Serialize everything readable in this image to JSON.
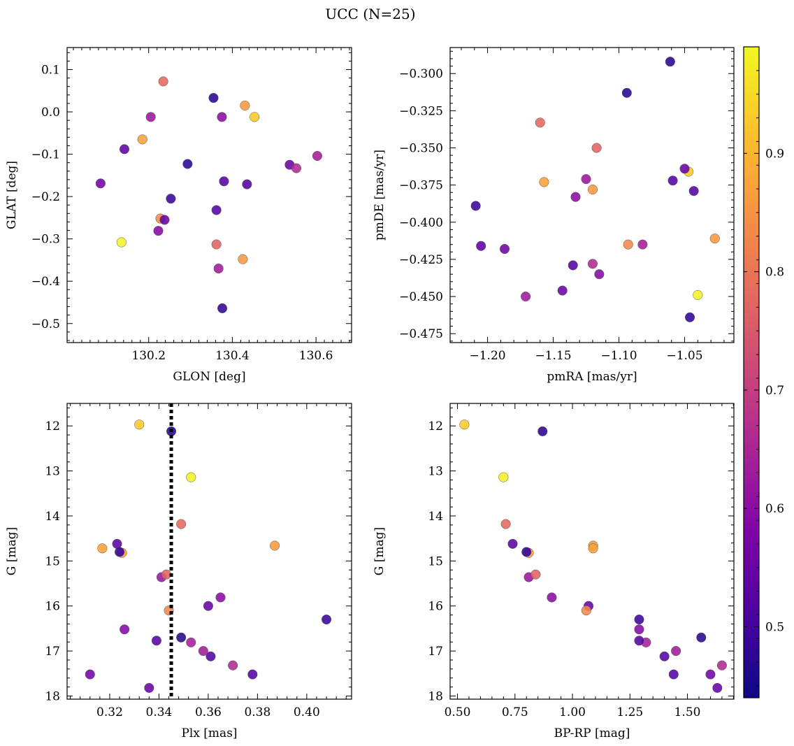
{
  "chart_data": {
    "type": "scatter",
    "title": "UCC (N=25)",
    "colorbar": {
      "colormap": "plasma",
      "range": [
        0.44,
        0.99
      ],
      "ticks": [
        "0.5",
        "0.6",
        "0.7",
        "0.8",
        "0.9"
      ]
    },
    "stars": [
      {
        "glon": 130.235,
        "glat": 0.072,
        "pmra": -1.16,
        "pmde": -0.333,
        "plx": 0.349,
        "g": 14.18,
        "bprp": 0.71,
        "c": 0.78
      },
      {
        "glon": 130.355,
        "glat": 0.033,
        "pmra": -1.061,
        "pmde": -0.292,
        "plx": 0.345,
        "g": 12.12,
        "bprp": 0.87,
        "c": 0.47
      },
      {
        "glon": 130.43,
        "glat": 0.015,
        "pmra": -1.12,
        "pmde": -0.378,
        "plx": 0.387,
        "g": 14.66,
        "bprp": 1.09,
        "c": 0.86
      },
      {
        "glon": 130.453,
        "glat": -0.012,
        "pmra": -1.047,
        "pmde": -0.366,
        "plx": 0.332,
        "g": 11.97,
        "bprp": 0.53,
        "c": 0.93
      },
      {
        "glon": 130.205,
        "glat": -0.012,
        "pmra": -1.125,
        "pmde": -0.371,
        "plx": 0.341,
        "g": 15.36,
        "bprp": 0.81,
        "c": 0.62
      },
      {
        "glon": 130.375,
        "glat": -0.012,
        "pmra": -1.133,
        "pmde": -0.383,
        "plx": 0.365,
        "g": 15.81,
        "bprp": 0.91,
        "c": 0.6
      },
      {
        "glon": 130.185,
        "glat": -0.065,
        "pmra": -1.157,
        "pmde": -0.373,
        "plx": 0.317,
        "g": 14.72,
        "bprp": 1.09,
        "c": 0.87
      },
      {
        "glon": 130.142,
        "glat": -0.088,
        "pmra": -1.205,
        "pmde": -0.416,
        "plx": 0.323,
        "g": 14.62,
        "bprp": 0.74,
        "c": 0.53
      },
      {
        "glon": 130.603,
        "glat": -0.104,
        "pmra": -1.082,
        "pmde": -0.415,
        "plx": 0.353,
        "g": 16.81,
        "bprp": 1.32,
        "c": 0.64
      },
      {
        "glon": 130.293,
        "glat": -0.123,
        "pmra": -1.094,
        "pmde": -0.313,
        "plx": 0.349,
        "g": 16.7,
        "bprp": 1.56,
        "c": 0.47
      },
      {
        "glon": 130.537,
        "glat": -0.125,
        "pmra": -1.05,
        "pmde": -0.364,
        "plx": 0.36,
        "g": 16.0,
        "bprp": 1.07,
        "c": 0.55
      },
      {
        "glon": 130.553,
        "glat": -0.133,
        "pmra": -1.12,
        "pmde": -0.428,
        "plx": 0.37,
        "g": 17.32,
        "bprp": 1.65,
        "c": 0.66
      },
      {
        "glon": 130.38,
        "glat": -0.164,
        "pmra": -1.059,
        "pmde": -0.372,
        "plx": 0.361,
        "g": 17.12,
        "bprp": 1.4,
        "c": 0.52
      },
      {
        "glon": 130.085,
        "glat": -0.169,
        "pmra": -1.187,
        "pmde": -0.418,
        "plx": 0.312,
        "g": 17.52,
        "bprp": 1.6,
        "c": 0.56
      },
      {
        "glon": 130.435,
        "glat": -0.171,
        "pmra": -1.043,
        "pmde": -0.379,
        "plx": 0.378,
        "g": 17.52,
        "bprp": 1.44,
        "c": 0.52
      },
      {
        "glon": 130.253,
        "glat": -0.205,
        "pmra": -1.209,
        "pmde": -0.389,
        "plx": 0.408,
        "g": 16.3,
        "bprp": 1.29,
        "c": 0.49
      },
      {
        "glon": 130.362,
        "glat": -0.232,
        "pmra": -1.135,
        "pmde": -0.429,
        "plx": 0.339,
        "g": 16.77,
        "bprp": 1.29,
        "c": 0.52
      },
      {
        "glon": 130.228,
        "glat": -0.252,
        "pmra": -1.093,
        "pmde": -0.415,
        "plx": 0.344,
        "g": 16.1,
        "bprp": 1.06,
        "c": 0.83
      },
      {
        "glon": 130.238,
        "glat": -0.255,
        "pmra": -1.143,
        "pmde": -0.446,
        "plx": 0.336,
        "g": 17.82,
        "bprp": 1.63,
        "c": 0.55
      },
      {
        "glon": 130.223,
        "glat": -0.281,
        "pmra": -1.115,
        "pmde": -0.435,
        "plx": 0.326,
        "g": 16.52,
        "bprp": 1.29,
        "c": 0.59
      },
      {
        "glon": 130.135,
        "glat": -0.308,
        "pmra": -1.04,
        "pmde": -0.449,
        "plx": 0.353,
        "g": 13.14,
        "bprp": 0.7,
        "c": 0.98
      },
      {
        "glon": 130.362,
        "glat": -0.313,
        "pmra": -1.117,
        "pmde": -0.35,
        "plx": 0.343,
        "g": 15.3,
        "bprp": 0.84,
        "c": 0.77
      },
      {
        "glon": 130.425,
        "glat": -0.348,
        "pmra": -1.027,
        "pmde": -0.411,
        "plx": 0.325,
        "g": 14.82,
        "bprp": 0.81,
        "c": 0.86
      },
      {
        "glon": 130.367,
        "glat": -0.37,
        "pmra": -1.171,
        "pmde": -0.45,
        "plx": 0.358,
        "g": 17.0,
        "bprp": 1.45,
        "c": 0.63
      },
      {
        "glon": 130.376,
        "glat": -0.464,
        "pmra": -1.046,
        "pmde": -0.464,
        "plx": 0.324,
        "g": 14.8,
        "bprp": 0.8,
        "c": 0.48
      }
    ],
    "panels": [
      {
        "id": "glon-glat",
        "xkey": "glon",
        "ykey": "glat",
        "xlabel": "GLON [deg]",
        "ylabel": "GLAT [deg]",
        "xlim": [
          130.005,
          130.685
        ],
        "ylim": [
          -0.545,
          0.152
        ],
        "y_inverted": false,
        "xticks": [
          130.2,
          130.4,
          130.6
        ],
        "xticklabels": [
          "130.2",
          "130.4",
          "130.6"
        ],
        "yticks": [
          0.1,
          0.0,
          -0.1,
          -0.2,
          -0.3,
          -0.4,
          -0.5
        ],
        "yticklabels": [
          "0.1",
          "0.0",
          "−0.1",
          "−0.2",
          "−0.3",
          "−0.4",
          "−0.5"
        ],
        "xminor": 0.02,
        "yminor": 0.02
      },
      {
        "id": "pmra-pmde",
        "xkey": "pmra",
        "ykey": "pmde",
        "xlabel": "pmRA [mas/yr]",
        "ylabel": "pmDE [mas/yr]",
        "xlim": [
          -1.2285,
          -1.0125
        ],
        "ylim": [
          -0.481,
          -0.2825
        ],
        "y_inverted": false,
        "xticks": [
          -1.2,
          -1.15,
          -1.1,
          -1.05
        ],
        "xticklabels": [
          "−1.20",
          "−1.15",
          "−1.10",
          "−1.05"
        ],
        "yticks": [
          -0.3,
          -0.325,
          -0.35,
          -0.375,
          -0.4,
          -0.425,
          -0.45,
          -0.475
        ],
        "yticklabels": [
          "−0.300",
          "−0.325",
          "−0.350",
          "−0.375",
          "−0.400",
          "−0.425",
          "−0.450",
          "−0.475"
        ],
        "xminor": 0.01,
        "yminor": 0.005
      },
      {
        "id": "plx-g",
        "xkey": "plx",
        "ykey": "g",
        "xlabel": "Plx [mas]",
        "ylabel": "G [mag]",
        "xlim": [
          0.3027,
          0.4182
        ],
        "ylim": [
          11.5,
          18.07
        ],
        "y_inverted": true,
        "xticks": [
          0.32,
          0.34,
          0.36,
          0.38,
          0.4
        ],
        "xticklabels": [
          "0.32",
          "0.34",
          "0.36",
          "0.38",
          "0.40"
        ],
        "yticks": [
          12,
          13,
          14,
          15,
          16,
          17,
          18
        ],
        "yticklabels": [
          "12",
          "13",
          "14",
          "15",
          "16",
          "17",
          "18"
        ],
        "xminor": 0.004,
        "yminor": 0.2,
        "vline": 0.345
      },
      {
        "id": "bprp-g",
        "xkey": "bprp",
        "ykey": "g",
        "xlabel": "BP-RP [mag]",
        "ylabel": "G [mag]",
        "xlim": [
          0.468,
          1.702
        ],
        "ylim": [
          11.5,
          18.07
        ],
        "y_inverted": true,
        "xticks": [
          0.5,
          0.75,
          1.0,
          1.25,
          1.5
        ],
        "xticklabels": [
          "0.50",
          "0.75",
          "1.00",
          "1.25",
          "1.50"
        ],
        "yticks": [
          12,
          13,
          14,
          15,
          16,
          17,
          18
        ],
        "yticklabels": [
          "12",
          "13",
          "14",
          "15",
          "16",
          "17",
          "18"
        ],
        "xminor": 0.05,
        "yminor": 0.2
      }
    ]
  }
}
